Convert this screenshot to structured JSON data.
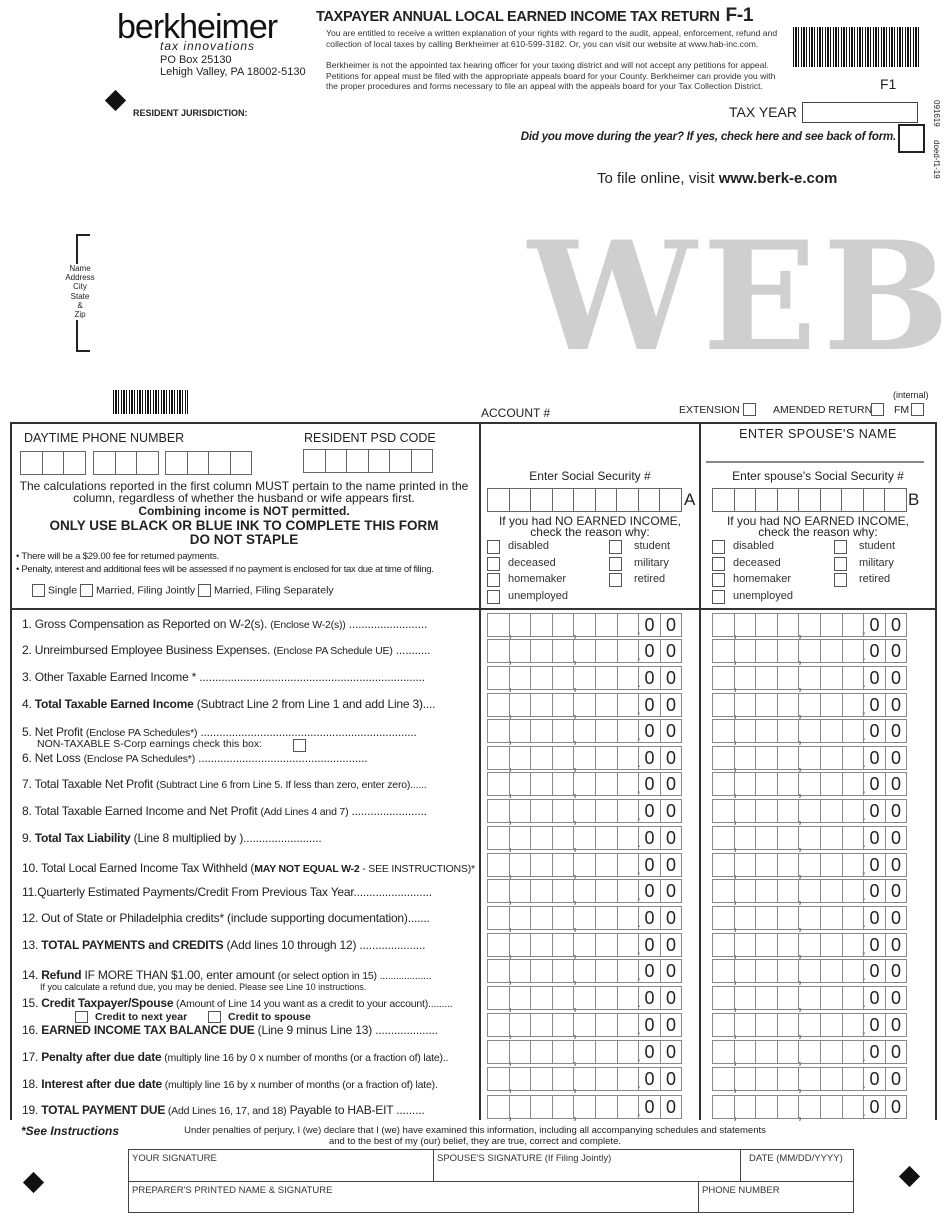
{
  "header": {
    "logo_text": "berkheimer",
    "logo_tagline": "tax innovations",
    "address_line1": "PO Box 25130",
    "address_line2": "Lehigh Valley, PA  18002-5130",
    "resident_jurisdiction_label": "RESIDENT JURISDICTION:",
    "title": "TAXPAYER ANNUAL LOCAL EARNED INCOME TAX RETURN",
    "form_code": "F-1",
    "rights_notice": "You are entitled to receive a written explanation of your rights with regard to the audit, appeal, enforcement, refund and collection of local taxes by calling Berkheimer at 610-599-3182.  Or, you can visit our website at www.hab-inc.com.",
    "appeal_notice": "Berkheimer is not the appointed tax hearing officer for your taxing district and will not accept any petitions for appeal. Petitions for appeal must be filed with the appropriate appeals board for your County. Berkheimer can provide you with the proper procedures and forms necessary to file an appeal with the appeals board for your Tax Collection District.",
    "barcode_caption": "F1",
    "tax_year_label": "TAX YEAR",
    "tax_year_value": "",
    "moved_question": "Did you move during the year?  If yes, check here and see back of form.",
    "side_code_1": "091619",
    "side_code_2": "doed-f1-19",
    "file_online_prefix": "To file online, visit ",
    "file_online_url": "www.berk-e.com",
    "watermark": "WEB",
    "name_block_label": [
      "Name",
      "Address",
      "City",
      "State",
      "&",
      "Zip"
    ]
  },
  "account_row": {
    "account_label": "ACCOUNT #",
    "extension_label": "EXTENSION",
    "amended_label": "AMENDED RETURN",
    "internal_label": "(internal)",
    "fm_label": "FM"
  },
  "info": {
    "phone_label": "DAYTIME PHONE NUMBER",
    "psd_label": "RESIDENT PSD CODE",
    "calc_notice": "The calculations reported in the first column MUST pertain to the name printed in the column, regardless of whether the husband or wife appears first.",
    "combine_notice": "Combining income is NOT permitted.",
    "ink_notice": "ONLY USE BLACK OR BLUE INK TO COMPLETE THIS FORM",
    "staple_notice": "DO NOT STAPLE",
    "fee_notice": "There will be a $29.00 fee for returned payments.",
    "penalty_notice": "Penalty, interest and additional fees will be assessed if no payment is enclosed for tax due at time of filing.",
    "filing_status": [
      "Single",
      "Married, Filing Jointly",
      "Married, Filing Separately"
    ]
  },
  "col_a": {
    "ssn_label": "Enter Social Security #",
    "letter": "A",
    "no_income_label": "If you had NO EARNED INCOME,",
    "no_income_label2": "check the reason why:",
    "reasons": [
      "disabled",
      "student",
      "deceased",
      "military",
      "homemaker",
      "retired",
      "unemployed"
    ]
  },
  "col_b": {
    "spouse_name_label": "ENTER SPOUSE'S NAME",
    "ssn_label": "Enter spouse's Social Security #",
    "letter": "B",
    "no_income_label": "If you had NO EARNED INCOME,",
    "no_income_label2": "check the reason why:",
    "reasons": [
      "disabled",
      "student",
      "deceased",
      "military",
      "homemaker",
      "retired",
      "unemployed"
    ]
  },
  "cents_default": "0",
  "lines": [
    {
      "parts": [
        [
          "n",
          "1. Gross Compensation as Reported on W-2(s).  "
        ],
        [
          "s",
          "(Enclose W-2(s))"
        ],
        [
          "n",
          " ........................."
        ]
      ]
    },
    {
      "parts": [
        [
          "n",
          "2. Unreimbursed Employee Business Expenses.  "
        ],
        [
          "s",
          "(Enclose PA Schedule UE)"
        ],
        [
          "n",
          " ..........."
        ]
      ]
    },
    {
      "parts": [
        [
          "n",
          "3. Other Taxable Earned Income * ........................................................................"
        ]
      ]
    },
    {
      "parts": [
        [
          "n",
          "4. "
        ],
        [
          "b",
          "Total Taxable Earned Income"
        ],
        [
          "n",
          "  (Subtract Line 2 from Line 1 and add Line 3)...."
        ]
      ]
    },
    {
      "parts": [
        [
          "n",
          "5. Net Profit "
        ],
        [
          "s",
          "(Enclose PA Schedules*)"
        ],
        [
          "n",
          " ....................................................................."
        ]
      ],
      "sub": "NON-TAXABLE S-Corp earnings check this box:"
    },
    {
      "parts": [
        [
          "n",
          "6. Net Loss "
        ],
        [
          "s",
          "(Enclose PA Schedules*)"
        ],
        [
          "n",
          "  ......................................................"
        ]
      ]
    },
    {
      "parts": [
        [
          "n",
          "7. Total Taxable Net Profit "
        ],
        [
          "s",
          "(Subtract Line 6 from Line 5.  If less than zero, enter zero)......"
        ]
      ]
    },
    {
      "parts": [
        [
          "n",
          "8. Total Taxable Earned Income and Net Profit "
        ],
        [
          "s",
          "(Add Lines 4 and 7)"
        ],
        [
          "n",
          " ........................"
        ]
      ]
    },
    {
      "parts": [
        [
          "n",
          "9. "
        ],
        [
          "b",
          "Total Tax Liability"
        ],
        [
          "n",
          "  (Line 8 multiplied by                      )........................."
        ]
      ]
    },
    {
      "parts": [
        [
          "n",
          "10. Total Local Earned Income Tax Withheld ("
        ],
        [
          "bs",
          "MAY NOT EQUAL W-2"
        ],
        [
          "s",
          " - SEE INSTRUCTIONS)*"
        ]
      ]
    },
    {
      "parts": [
        [
          "n",
          "11.Quarterly Estimated Payments/Credit From Previous Tax Year........................."
        ]
      ]
    },
    {
      "parts": [
        [
          "n",
          "12. Out of State or Philadelphia credits* (include supporting documentation)......."
        ]
      ]
    },
    {
      "parts": [
        [
          "n",
          "13. "
        ],
        [
          "b",
          "TOTAL PAYMENTS and CREDITS"
        ],
        [
          "n",
          "  (Add lines 10 through 12) ....................."
        ]
      ]
    },
    {
      "parts": [
        [
          "n",
          "14. "
        ],
        [
          "b",
          "Refund"
        ],
        [
          "n",
          "  IF MORE THAN $1.00, enter amount "
        ],
        [
          "s",
          "(or select option in 15) ..................."
        ]
      ],
      "sub": "If you calculate a refund due, you may be denied.  Please see Line 10 instructions."
    },
    {
      "parts": [
        [
          "n",
          "15. "
        ],
        [
          "b",
          "Credit Taxpayer/Spouse"
        ],
        [
          "s",
          " (Amount of Line 14 you want as a credit to your account)........."
        ]
      ],
      "options": [
        "Credit to next year",
        "Credit to spouse"
      ]
    },
    {
      "parts": [
        [
          "n",
          "16. "
        ],
        [
          "b",
          "EARNED INCOME TAX BALANCE DUE"
        ],
        [
          "n",
          " (Line 9 minus Line 13) ...................."
        ]
      ]
    },
    {
      "parts": [
        [
          "n",
          "17. "
        ],
        [
          "b",
          "Penalty after due date"
        ],
        [
          "s",
          " (multiply line 16 by   0      x number of months (or a fraction of) late).."
        ]
      ]
    },
    {
      "parts": [
        [
          "n",
          "18. "
        ],
        [
          "b",
          "Interest after due date"
        ],
        [
          "s",
          " (multiply line 16 by              x number of months (or a fraction of) late)."
        ]
      ]
    },
    {
      "parts": [
        [
          "n",
          "19. "
        ],
        [
          "b",
          "TOTAL PAYMENT DUE"
        ],
        [
          "s",
          " (Add Lines 16, 17, and 18)"
        ],
        [
          "n",
          "   Payable to HAB-EIT ........."
        ]
      ]
    }
  ],
  "footer": {
    "see_instructions": "*See Instructions",
    "perjury_1": "Under penalties of perjury, I (we) declare that I (we) have examined this information, including all accompanying schedules and statements",
    "perjury_2": "and to the best of my (our) belief, they are true, correct and complete.",
    "your_signature": "YOUR SIGNATURE",
    "spouse_signature": "SPOUSE'S SIGNATURE (If Filing Jointly)",
    "date_label": "DATE (MM/DD/YYYY)",
    "preparer_label": "PREPARER'S PRINTED NAME & SIGNATURE",
    "phone_label": "PHONE NUMBER"
  }
}
